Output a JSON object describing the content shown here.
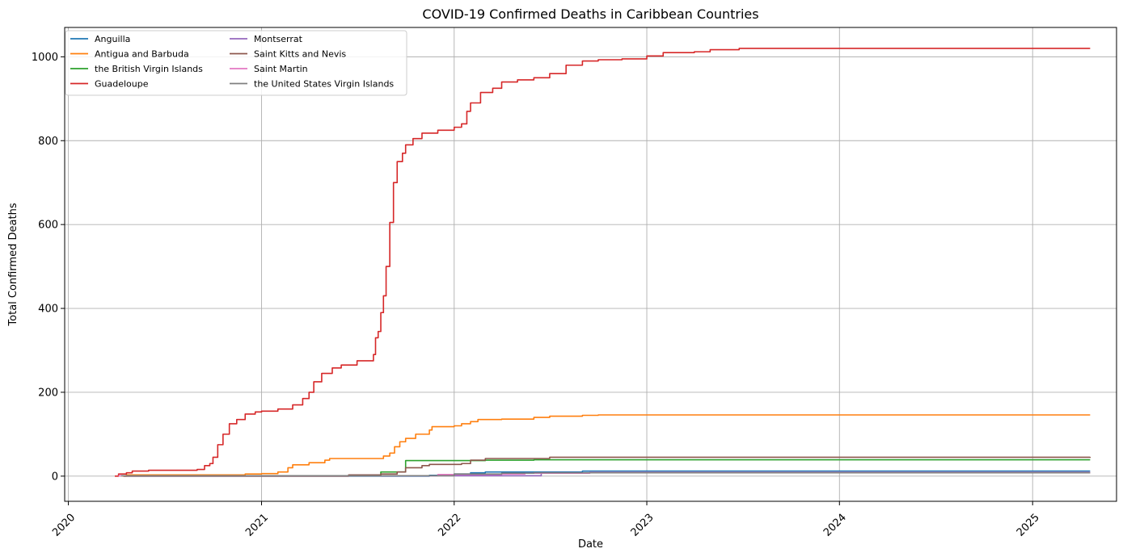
{
  "chart_data": {
    "type": "line",
    "title": "COVID-19 Confirmed Deaths in Caribbean Countries",
    "xlabel": "Date",
    "ylabel": "Total Confirmed Deaths",
    "xlim": [
      "2019-12-25",
      "2025-06-09"
    ],
    "ylim": [
      -60,
      1070
    ],
    "x_ticks": [
      "2020",
      "2021",
      "2022",
      "2023",
      "2024",
      "2025"
    ],
    "y_ticks": [
      0,
      200,
      400,
      600,
      800,
      1000
    ],
    "grid": true,
    "legend_position": "top-left",
    "series": [
      {
        "name": "Anguilla",
        "color": "#1f77b4",
        "points": [
          [
            "2020-04-15",
            0
          ],
          [
            "2021-01-01",
            0
          ],
          [
            "2021-09-01",
            0
          ],
          [
            "2021-11-15",
            2
          ],
          [
            "2022-01-01",
            5
          ],
          [
            "2022-02-01",
            8
          ],
          [
            "2022-03-01",
            10
          ],
          [
            "2022-06-01",
            10
          ],
          [
            "2022-09-01",
            12
          ],
          [
            "2023-01-01",
            12
          ],
          [
            "2025-04-20",
            12
          ]
        ]
      },
      {
        "name": "Antigua and Barbuda",
        "color": "#ff7f0e",
        "points": [
          [
            "2020-04-13",
            0
          ],
          [
            "2020-04-20",
            3
          ],
          [
            "2020-09-01",
            3
          ],
          [
            "2020-12-01",
            5
          ],
          [
            "2021-01-01",
            6
          ],
          [
            "2021-02-01",
            10
          ],
          [
            "2021-02-20",
            20
          ],
          [
            "2021-03-01",
            27
          ],
          [
            "2021-04-01",
            32
          ],
          [
            "2021-05-01",
            38
          ],
          [
            "2021-05-10",
            42
          ],
          [
            "2021-08-01",
            42
          ],
          [
            "2021-08-20",
            48
          ],
          [
            "2021-09-01",
            55
          ],
          [
            "2021-09-10",
            70
          ],
          [
            "2021-09-20",
            82
          ],
          [
            "2021-10-01",
            90
          ],
          [
            "2021-10-20",
            100
          ],
          [
            "2021-11-15",
            110
          ],
          [
            "2021-11-20",
            118
          ],
          [
            "2021-12-01",
            118
          ],
          [
            "2022-01-01",
            120
          ],
          [
            "2022-01-15",
            125
          ],
          [
            "2022-02-01",
            130
          ],
          [
            "2022-02-15",
            135
          ],
          [
            "2022-04-01",
            136
          ],
          [
            "2022-06-01",
            140
          ],
          [
            "2022-07-01",
            143
          ],
          [
            "2022-09-01",
            145
          ],
          [
            "2022-10-01",
            146
          ],
          [
            "2025-04-20",
            146
          ]
        ]
      },
      {
        "name": "the British Virgin Islands",
        "color": "#2ca02c",
        "points": [
          [
            "2020-04-08",
            1
          ],
          [
            "2021-07-01",
            1
          ],
          [
            "2021-08-15",
            10
          ],
          [
            "2021-10-01",
            37
          ],
          [
            "2022-01-01",
            37
          ],
          [
            "2022-03-01",
            38
          ],
          [
            "2022-06-01",
            39
          ],
          [
            "2025-04-20",
            39
          ]
        ]
      },
      {
        "name": "Guadeloupe",
        "color": "#d62728",
        "points": [
          [
            "2020-03-29",
            0
          ],
          [
            "2020-04-05",
            5
          ],
          [
            "2020-04-20",
            8
          ],
          [
            "2020-05-01",
            12
          ],
          [
            "2020-06-01",
            14
          ],
          [
            "2020-08-01",
            14
          ],
          [
            "2020-09-01",
            16
          ],
          [
            "2020-09-15",
            25
          ],
          [
            "2020-09-25",
            30
          ],
          [
            "2020-10-01",
            45
          ],
          [
            "2020-10-10",
            75
          ],
          [
            "2020-10-20",
            100
          ],
          [
            "2020-11-01",
            125
          ],
          [
            "2020-11-15",
            135
          ],
          [
            "2020-12-01",
            148
          ],
          [
            "2020-12-20",
            153
          ],
          [
            "2021-01-01",
            155
          ],
          [
            "2021-02-01",
            160
          ],
          [
            "2021-03-01",
            170
          ],
          [
            "2021-03-20",
            185
          ],
          [
            "2021-04-01",
            200
          ],
          [
            "2021-04-10",
            225
          ],
          [
            "2021-04-25",
            245
          ],
          [
            "2021-05-15",
            258
          ],
          [
            "2021-06-01",
            265
          ],
          [
            "2021-07-01",
            275
          ],
          [
            "2021-08-01",
            290
          ],
          [
            "2021-08-05",
            330
          ],
          [
            "2021-08-10",
            345
          ],
          [
            "2021-08-15",
            390
          ],
          [
            "2021-08-20",
            430
          ],
          [
            "2021-08-25",
            500
          ],
          [
            "2021-09-01",
            605
          ],
          [
            "2021-09-08",
            700
          ],
          [
            "2021-09-15",
            750
          ],
          [
            "2021-09-25",
            770
          ],
          [
            "2021-10-01",
            790
          ],
          [
            "2021-10-15",
            805
          ],
          [
            "2021-11-01",
            818
          ],
          [
            "2021-12-01",
            825
          ],
          [
            "2022-01-01",
            832
          ],
          [
            "2022-01-15",
            840
          ],
          [
            "2022-01-25",
            870
          ],
          [
            "2022-02-01",
            890
          ],
          [
            "2022-02-20",
            915
          ],
          [
            "2022-03-15",
            925
          ],
          [
            "2022-04-01",
            940
          ],
          [
            "2022-05-01",
            945
          ],
          [
            "2022-06-01",
            950
          ],
          [
            "2022-07-01",
            960
          ],
          [
            "2022-08-01",
            980
          ],
          [
            "2022-09-01",
            990
          ],
          [
            "2022-10-01",
            993
          ],
          [
            "2022-11-15",
            995
          ],
          [
            "2023-01-01",
            1002
          ],
          [
            "2023-02-01",
            1010
          ],
          [
            "2023-04-01",
            1012
          ],
          [
            "2023-05-01",
            1017
          ],
          [
            "2023-06-25",
            1020
          ],
          [
            "2025-04-20",
            1020
          ]
        ]
      },
      {
        "name": "Montserrat",
        "color": "#9467bd",
        "points": [
          [
            "2020-04-20",
            1
          ],
          [
            "2022-05-15",
            1
          ],
          [
            "2022-06-15",
            8
          ],
          [
            "2022-08-15",
            8
          ],
          [
            "2022-09-15",
            8
          ],
          [
            "2025-04-20",
            8
          ]
        ]
      },
      {
        "name": "Saint Kitts and Nevis",
        "color": "#8c564b",
        "points": [
          [
            "2020-04-15",
            0
          ],
          [
            "2021-06-01",
            0
          ],
          [
            "2021-06-15",
            3
          ],
          [
            "2021-08-15",
            5
          ],
          [
            "2021-09-15",
            10
          ],
          [
            "2021-10-01",
            20
          ],
          [
            "2021-11-01",
            25
          ],
          [
            "2021-11-15",
            28
          ],
          [
            "2022-01-15",
            30
          ],
          [
            "2022-02-01",
            38
          ],
          [
            "2022-03-01",
            42
          ],
          [
            "2022-07-01",
            45
          ],
          [
            "2025-04-20",
            46
          ]
        ]
      },
      {
        "name": "Saint Martin",
        "color": "#e377c2",
        "points": [
          [
            "2020-04-05",
            1
          ],
          [
            "2021-09-01",
            1
          ],
          [
            "2021-12-01",
            4
          ],
          [
            "2022-04-01",
            5
          ],
          [
            "2022-05-15",
            7
          ],
          [
            "2022-09-15",
            9
          ],
          [
            "2025-04-20",
            9
          ]
        ]
      },
      {
        "name": "the United States Virgin Islands",
        "color": "#7f7f7f",
        "points": [
          [
            "2020-04-10",
            1
          ],
          [
            "2021-10-01",
            1
          ],
          [
            "2022-01-01",
            5
          ],
          [
            "2022-04-01",
            7
          ],
          [
            "2022-06-01",
            8
          ],
          [
            "2025-04-20",
            8
          ]
        ]
      }
    ]
  }
}
